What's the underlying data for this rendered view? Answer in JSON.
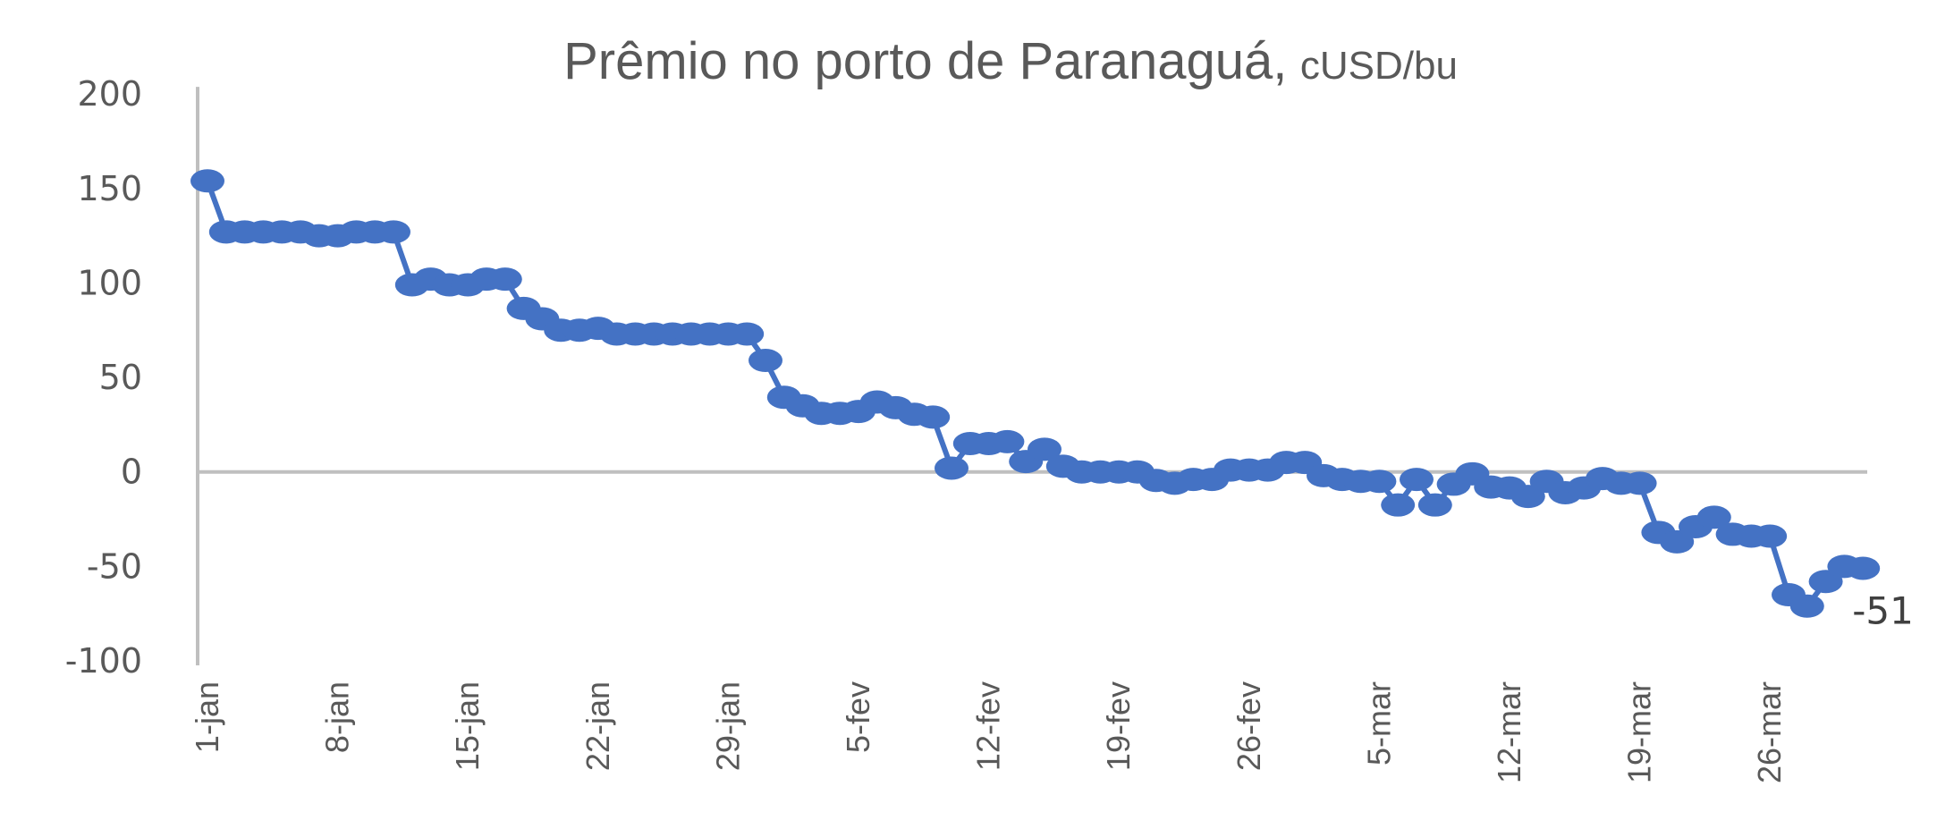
{
  "chart_data": {
    "type": "line",
    "title": "Prêmio no porto de Paranaguá,",
    "title_unit": "cUSD/bu",
    "xlabel": "",
    "ylabel": "",
    "ylim": [
      -100,
      200
    ],
    "yticks": [
      "200",
      "150",
      "100",
      "50",
      "0",
      "-50",
      "-100"
    ],
    "ytick_values": [
      200,
      150,
      100,
      50,
      0,
      -50,
      -100
    ],
    "x_start": "1-jan",
    "xticks": [
      {
        "label": "1-jan",
        "index": 0
      },
      {
        "label": "8-jan",
        "index": 7
      },
      {
        "label": "15-jan",
        "index": 14
      },
      {
        "label": "22-jan",
        "index": 21
      },
      {
        "label": "29-jan",
        "index": 28
      },
      {
        "label": "5-fev",
        "index": 35
      },
      {
        "label": "12-fev",
        "index": 42
      },
      {
        "label": "19-fev",
        "index": 49
      },
      {
        "label": "26-fev",
        "index": 56
      },
      {
        "label": "5-mar",
        "index": 63
      },
      {
        "label": "12-mar",
        "index": 70
      },
      {
        "label": "19-mar",
        "index": 77
      },
      {
        "label": "26-mar",
        "index": 84
      }
    ],
    "values": [
      154,
      127,
      127,
      127,
      127,
      127,
      125,
      125,
      127,
      127,
      127,
      99,
      102,
      99,
      99,
      102,
      102,
      86.5,
      81,
      75,
      75,
      76,
      73,
      73,
      73,
      73,
      73,
      73,
      73,
      73,
      59,
      39.5,
      35,
      31,
      31,
      32,
      37,
      34,
      30.5,
      29,
      2,
      15,
      15,
      16,
      5.5,
      12,
      3,
      0,
      0,
      0,
      0,
      -4.5,
      -6,
      -4,
      -4,
      1,
      1,
      1,
      5,
      5,
      -2,
      -4,
      -5,
      -5,
      -17.5,
      -4,
      -17.5,
      -6.5,
      -1,
      -8,
      -8.5,
      -13,
      -5,
      -11,
      -8.5,
      -3.5,
      -6,
      -6,
      -32,
      -37,
      -29,
      -24,
      -33,
      -34,
      -34,
      -65,
      -71,
      -58,
      -50,
      -51
    ],
    "last_label": "-51",
    "grid": false,
    "zero_line": true,
    "legend": "none",
    "colors": {
      "series": "#4472C4",
      "axis": "#BFBFBF",
      "text": "#595959"
    }
  }
}
